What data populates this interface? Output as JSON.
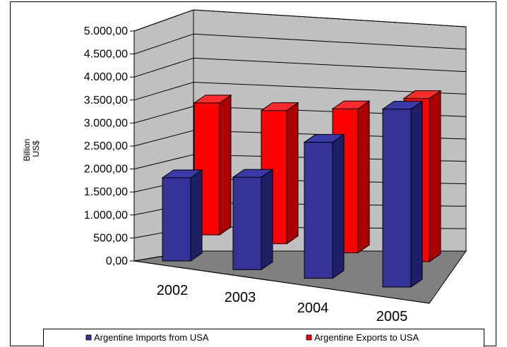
{
  "chart_data": {
    "type": "bar",
    "categories": [
      "2002",
      "2003",
      "2004",
      "2005"
    ],
    "series": [
      {
        "name": "Argentine Imports from USA",
        "values": [
          1810,
          2010,
          2960,
          3870
        ],
        "color": "#333399"
      },
      {
        "name": "Argentine Exports to USA",
        "values": [
          2870,
          2900,
          3130,
          3550
        ],
        "color": "#ff0000"
      }
    ],
    "title": "",
    "xlabel": "",
    "ylabel": "Billion\nUS$",
    "ylim": [
      0,
      5000
    ],
    "yticks": [
      "0,00",
      "500,00",
      "1.000,00",
      "1.500,00",
      "2.000,00",
      "2.500,00",
      "3.000,00",
      "3.500,00",
      "4.000,00",
      "4.500,00",
      "5.000,00"
    ],
    "grid": true,
    "legend_position": "bottom",
    "wall_color": "#c0c0c0",
    "floor_color": "#808080"
  }
}
